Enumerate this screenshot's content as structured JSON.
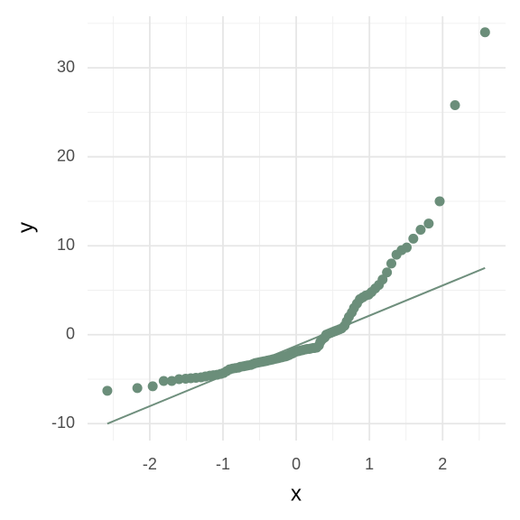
{
  "chart_data": {
    "type": "scatter",
    "x_label": "x",
    "y_label": "y",
    "color": "#6b8e7a",
    "grid": true,
    "xlim": [
      -2.85,
      2.86
    ],
    "ylim": [
      -11.9,
      35.8
    ],
    "xticks": [
      -2,
      -1,
      0,
      1,
      2
    ],
    "yticks": [
      -10,
      0,
      10,
      20,
      30
    ],
    "xminor": [
      -2.5,
      -1.5,
      -0.5,
      0.5,
      1.5,
      2.5
    ],
    "yminor": [
      -5,
      5,
      15,
      25,
      35
    ],
    "x": [
      -2.58,
      -2.17,
      -1.96,
      -1.81,
      -1.7,
      -1.6,
      -1.51,
      -1.44,
      -1.37,
      -1.3,
      -1.24,
      -1.18,
      -1.13,
      -1.08,
      -1.03,
      -0.99,
      -0.95,
      -0.91,
      -0.87,
      -0.83,
      -0.79,
      -0.76,
      -0.72,
      -0.69,
      -0.66,
      -0.62,
      -0.59,
      -0.56,
      -0.53,
      -0.5,
      -0.47,
      -0.44,
      -0.41,
      -0.39,
      -0.36,
      -0.33,
      -0.31,
      -0.28,
      -0.25,
      -0.23,
      -0.2,
      -0.18,
      -0.15,
      -0.13,
      -0.1,
      -0.08,
      -0.05,
      -0.03,
      0,
      0.03,
      0.05,
      0.08,
      0.1,
      0.13,
      0.15,
      0.18,
      0.2,
      0.23,
      0.25,
      0.28,
      0.31,
      0.33,
      0.36,
      0.39,
      0.41,
      0.44,
      0.47,
      0.5,
      0.53,
      0.56,
      0.59,
      0.62,
      0.66,
      0.69,
      0.72,
      0.76,
      0.79,
      0.83,
      0.87,
      0.91,
      0.95,
      0.99,
      1.03,
      1.08,
      1.13,
      1.18,
      1.24,
      1.3,
      1.37,
      1.44,
      1.51,
      1.6,
      1.7,
      1.81,
      1.96,
      2.17,
      2.58
    ],
    "values": [
      -6.3,
      -6.0,
      -5.8,
      -5.2,
      -5.2,
      -5.0,
      -4.95,
      -4.9,
      -4.85,
      -4.8,
      -4.7,
      -4.6,
      -4.55,
      -4.5,
      -4.4,
      -4.3,
      -4.1,
      -3.9,
      -3.8,
      -3.75,
      -3.7,
      -3.6,
      -3.55,
      -3.5,
      -3.45,
      -3.4,
      -3.3,
      -3.2,
      -3.15,
      -3.1,
      -3.05,
      -3.0,
      -2.95,
      -2.9,
      -2.85,
      -2.8,
      -2.75,
      -2.7,
      -2.65,
      -2.6,
      -2.55,
      -2.5,
      -2.45,
      -2.4,
      -2.3,
      -2.2,
      -2.1,
      -2.0,
      -1.9,
      -1.85,
      -1.8,
      -1.75,
      -1.7,
      -1.65,
      -1.6,
      -1.6,
      -1.55,
      -1.5,
      -1.5,
      -1.45,
      -1.2,
      -0.8,
      -0.5,
      -0.3,
      0,
      0.1,
      0.2,
      0.3,
      0.4,
      0.5,
      0.6,
      0.7,
      1.0,
      1.5,
      2.0,
      2.5,
      3.0,
      3.5,
      4.0,
      4.2,
      4.4,
      4.5,
      4.8,
      5.2,
      5.6,
      6.2,
      7.0,
      8.0,
      9.0,
      9.5,
      9.8,
      10.8,
      11.8,
      12.5,
      15.0,
      25.8,
      34.0
    ],
    "line": {
      "x": [
        -2.58,
        2.58
      ],
      "y": [
        -10,
        7.5
      ],
      "color": "#6f8f7d"
    }
  }
}
